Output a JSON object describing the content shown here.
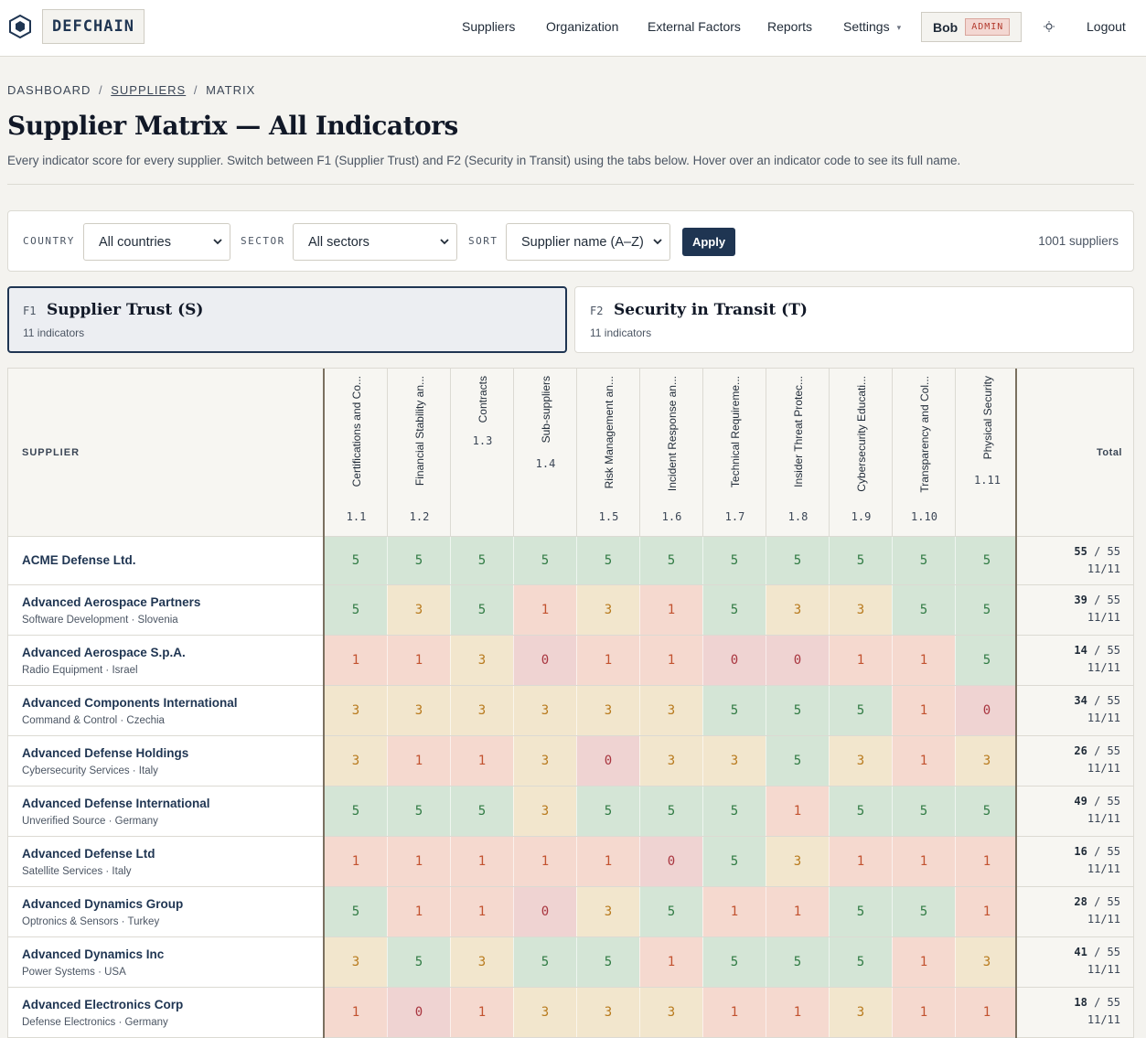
{
  "brand": {
    "name": "DEFCHAIN"
  },
  "nav": {
    "items": [
      "Suppliers",
      "Organization",
      "External Factors",
      "Reports",
      "Settings"
    ],
    "user": "Bob",
    "role": "ADMIN",
    "logout": "Logout"
  },
  "breadcrumb": {
    "dashboard": "DASHBOARD",
    "suppliers": "SUPPLIERS",
    "current": "MATRIX",
    "sep": "/"
  },
  "page": {
    "title": "Supplier Matrix — All Indicators",
    "description": "Every indicator score for every supplier. Switch between F1 (Supplier Trust) and F2 (Security in Transit) using the tabs below. Hover over an indicator code to see its full name."
  },
  "filters": {
    "country_label": "COUNTRY",
    "country_value": "All countries",
    "sector_label": "SECTOR",
    "sector_value": "All sectors",
    "sort_label": "SORT",
    "sort_value": "Supplier name (A–Z)",
    "apply": "Apply",
    "count": "1001 suppliers"
  },
  "tabs": [
    {
      "code": "F1",
      "name": "Supplier Trust (S)",
      "sub": "11 indicators",
      "active": true
    },
    {
      "code": "F2",
      "name": "Security in Transit (T)",
      "sub": "11 indicators",
      "active": false
    }
  ],
  "matrix": {
    "supplier_header": "SUPPLIER",
    "total_header": "Total",
    "max_total": "55",
    "indicators": [
      {
        "name": "Certifications and Co...",
        "code": "1.1"
      },
      {
        "name": "Financial Stability an...",
        "code": "1.2"
      },
      {
        "name": "Contracts",
        "code": "1.3"
      },
      {
        "name": "Sub-suppliers",
        "code": "1.4"
      },
      {
        "name": "Risk Management an...",
        "code": "1.5"
      },
      {
        "name": "Incident Response an...",
        "code": "1.6"
      },
      {
        "name": "Technical Requireme...",
        "code": "1.7"
      },
      {
        "name": "Insider Threat Protec...",
        "code": "1.8"
      },
      {
        "name": "Cybersecurity Educati...",
        "code": "1.9"
      },
      {
        "name": "Transparency and Col...",
        "code": "1.10"
      },
      {
        "name": "Physical Security",
        "code": "1.11"
      }
    ],
    "rows": [
      {
        "name": "ACME Defense Ltd.",
        "meta": "",
        "scores": [
          5,
          5,
          5,
          5,
          5,
          5,
          5,
          5,
          5,
          5,
          5
        ],
        "total": "55",
        "coverage": "11/11"
      },
      {
        "name": "Advanced Aerospace Partners",
        "meta": "Software Development · Slovenia",
        "scores": [
          5,
          3,
          5,
          1,
          3,
          1,
          5,
          3,
          3,
          5,
          5
        ],
        "total": "39",
        "coverage": "11/11"
      },
      {
        "name": "Advanced Aerospace S.p.A.",
        "meta": "Radio Equipment · Israel",
        "scores": [
          1,
          1,
          3,
          0,
          1,
          1,
          0,
          0,
          1,
          1,
          5
        ],
        "total": "14",
        "coverage": "11/11"
      },
      {
        "name": "Advanced Components International",
        "meta": "Command & Control · Czechia",
        "scores": [
          3,
          3,
          3,
          3,
          3,
          3,
          5,
          5,
          5,
          1,
          0
        ],
        "total": "34",
        "coverage": "11/11"
      },
      {
        "name": "Advanced Defense Holdings",
        "meta": "Cybersecurity Services · Italy",
        "scores": [
          3,
          1,
          1,
          3,
          0,
          3,
          3,
          5,
          3,
          1,
          3
        ],
        "total": "26",
        "coverage": "11/11"
      },
      {
        "name": "Advanced Defense International",
        "meta": "Unverified Source · Germany",
        "scores": [
          5,
          5,
          5,
          3,
          5,
          5,
          5,
          1,
          5,
          5,
          5
        ],
        "total": "49",
        "coverage": "11/11"
      },
      {
        "name": "Advanced Defense Ltd",
        "meta": "Satellite Services · Italy",
        "scores": [
          1,
          1,
          1,
          1,
          1,
          0,
          5,
          3,
          1,
          1,
          1
        ],
        "total": "16",
        "coverage": "11/11"
      },
      {
        "name": "Advanced Dynamics Group",
        "meta": "Optronics & Sensors · Turkey",
        "scores": [
          5,
          1,
          1,
          0,
          3,
          5,
          1,
          1,
          5,
          5,
          1
        ],
        "total": "28",
        "coverage": "11/11"
      },
      {
        "name": "Advanced Dynamics Inc",
        "meta": "Power Systems · USA",
        "scores": [
          3,
          5,
          3,
          5,
          5,
          1,
          5,
          5,
          5,
          1,
          3
        ],
        "total": "41",
        "coverage": "11/11"
      },
      {
        "name": "Advanced Electronics Corp",
        "meta": "Defense Electronics · Germany",
        "scores": [
          1,
          0,
          1,
          3,
          3,
          3,
          1,
          1,
          3,
          1,
          1
        ],
        "total": "18",
        "coverage": "11/11"
      }
    ]
  }
}
